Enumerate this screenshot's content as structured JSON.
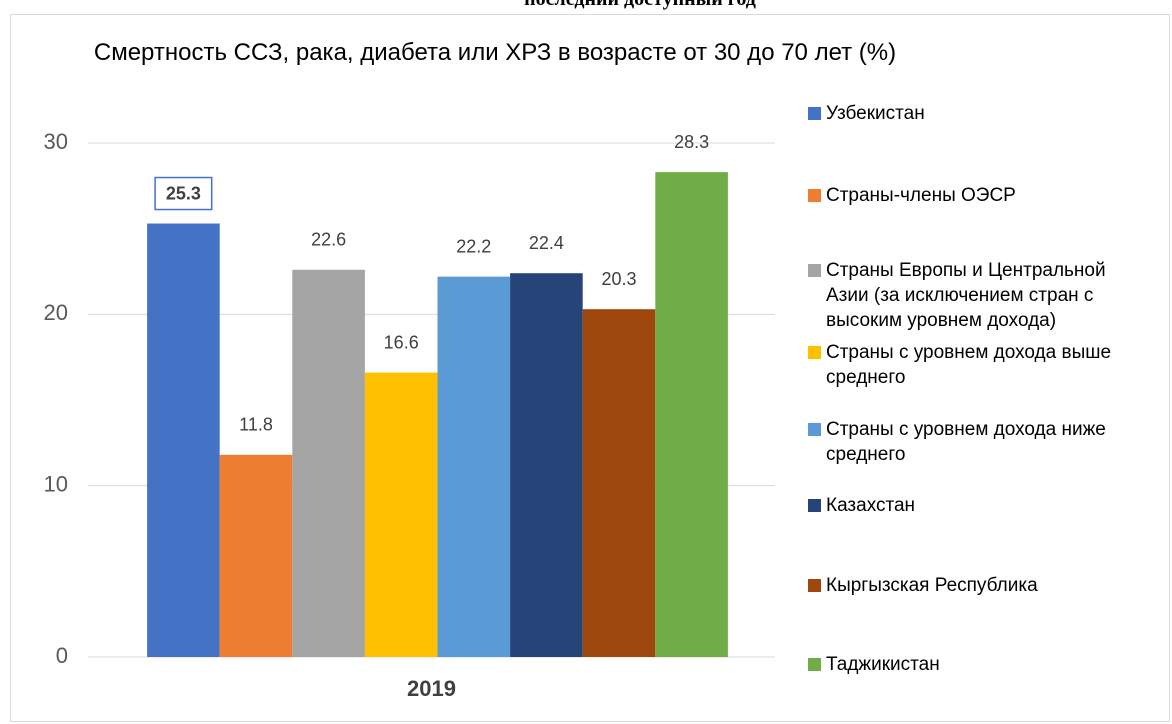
{
  "header_note": "последний доступный год",
  "chart_data": {
    "type": "bar",
    "title": "Смертность ССЗ, рака, диабета или ХРЗ в возрасте от 30 до 70 лет (%)",
    "categories": [
      "2019"
    ],
    "series": [
      {
        "name": "Узбекистан",
        "color": "#4472c4",
        "values": [
          25.3
        ]
      },
      {
        "name": "Страны-члены ОЭСР",
        "color": "#ed7d31",
        "values": [
          11.8
        ]
      },
      {
        "name": "Страны Европы и Центральной Азии (за исключением стран с высоким уровнем дохода)",
        "color": "#a5a5a5",
        "values": [
          22.6
        ]
      },
      {
        "name": "Страны с уровнем дохода выше среднего",
        "color": "#ffc000",
        "values": [
          16.6
        ]
      },
      {
        "name": "Страны с уровнем дохода ниже среднего",
        "color": "#5b9bd5",
        "values": [
          22.2
        ]
      },
      {
        "name": "Казахстан",
        "color": "#264478",
        "values": [
          22.4
        ]
      },
      {
        "name": "Кыргызская Республика",
        "color": "#9e480e",
        "values": [
          20.3
        ]
      },
      {
        "name": "Таджикистан",
        "color": "#70ad47",
        "values": [
          28.3
        ]
      }
    ],
    "highlight_series": 0,
    "ylim": [
      0,
      30
    ],
    "yticks": [
      0,
      10,
      20,
      30
    ],
    "grid": true,
    "legend": "right"
  }
}
